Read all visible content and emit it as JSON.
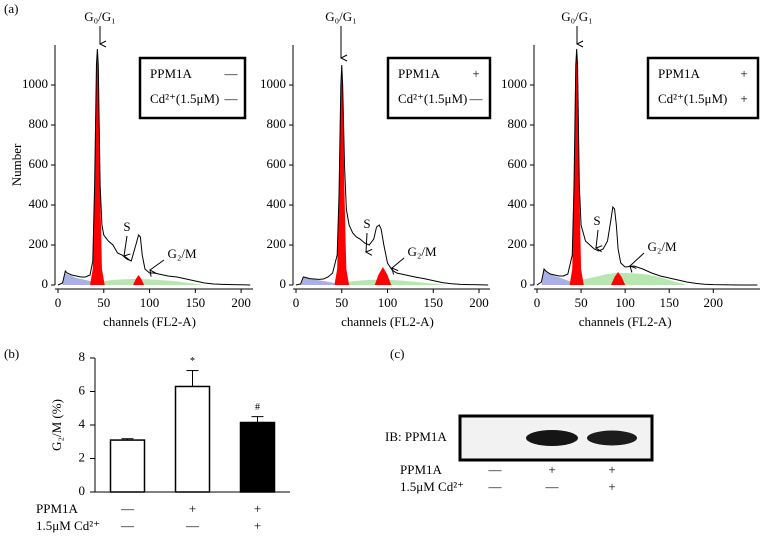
{
  "panel_labels": [
    "(a)",
    "(b)",
    "(c)"
  ],
  "chart_data": [
    {
      "type": "line",
      "x_label": "channels (FL2-A)",
      "y_label": "Number",
      "xlim": [
        0,
        213
      ],
      "xticks": [
        0,
        50,
        100,
        150,
        200
      ],
      "ylim": [
        0,
        1200
      ],
      "yticks": [
        0,
        200,
        400,
        600,
        800,
        1000
      ],
      "annotations": [
        "G₀/G₁",
        "S",
        "G₂/M"
      ],
      "conditions": [
        {
          "label": "PPM1A",
          "value": "—"
        },
        {
          "label": "Cd²⁺(1.5μM)",
          "value": "—"
        }
      ],
      "series": [
        {
          "color": "#aab0e6",
          "fill": true,
          "x": [
            5,
            8,
            10,
            15,
            20,
            25,
            30,
            35,
            40
          ],
          "values": [
            0,
            60,
            55,
            45,
            35,
            30,
            25,
            20,
            15
          ]
        },
        {
          "color": "#b8e6b0",
          "fill": true,
          "x": [
            50,
            60,
            70,
            80,
            90,
            100,
            110,
            120,
            130,
            140,
            150,
            160
          ],
          "values": [
            20,
            25,
            28,
            30,
            30,
            28,
            25,
            22,
            18,
            12,
            6,
            0
          ]
        },
        {
          "color": "#ff0000",
          "fill": true,
          "x": [
            35,
            38,
            40,
            42,
            43,
            44,
            46,
            48,
            51
          ],
          "values": [
            0,
            80,
            500,
            1100,
            1180,
            1100,
            500,
            80,
            0
          ]
        },
        {
          "color": "#ff0000",
          "fill": true,
          "x": [
            82,
            85,
            88,
            91,
            94
          ],
          "values": [
            0,
            30,
            50,
            30,
            0
          ]
        },
        {
          "color": "#000000",
          "fill": false,
          "x": [
            0,
            5,
            8,
            10,
            15,
            20,
            25,
            30,
            35,
            38,
            40,
            42,
            43,
            44,
            46,
            48,
            50,
            55,
            60,
            65,
            70,
            75,
            80,
            85,
            88,
            90,
            92,
            95,
            100,
            105,
            110,
            120,
            130,
            140,
            150,
            160,
            170,
            180,
            190,
            200,
            210
          ],
          "values": [
            0,
            10,
            70,
            60,
            50,
            45,
            40,
            40,
            50,
            120,
            500,
            1100,
            1180,
            1100,
            500,
            300,
            250,
            220,
            200,
            160,
            150,
            130,
            120,
            200,
            250,
            240,
            150,
            80,
            60,
            60,
            55,
            45,
            40,
            30,
            20,
            10,
            5,
            3,
            2,
            1,
            0
          ]
        }
      ]
    },
    {
      "type": "line",
      "x_label": "channels (FL2-A)",
      "xlim": [
        0,
        212
      ],
      "xticks": [
        0,
        50,
        100,
        150,
        200
      ],
      "ylim": [
        0,
        1200
      ],
      "yticks": [
        0,
        200,
        400,
        600,
        800,
        1000
      ],
      "annotations": [
        "G₀/G₁",
        "S",
        "G₂/M"
      ],
      "conditions": [
        {
          "label": "PPM1A",
          "value": "+"
        },
        {
          "label": "Cd²⁺(1.5μM)",
          "value": "—"
        }
      ],
      "series": [
        {
          "color": "#aab0e6",
          "fill": true,
          "x": [
            5,
            8,
            10,
            15,
            20,
            25,
            30,
            35,
            42
          ],
          "values": [
            0,
            40,
            38,
            32,
            28,
            24,
            20,
            16,
            10
          ]
        },
        {
          "color": "#b8e6b0",
          "fill": true,
          "x": [
            55,
            65,
            75,
            85,
            95,
            105,
            115,
            125,
            135,
            145,
            155,
            165
          ],
          "values": [
            15,
            20,
            24,
            26,
            26,
            25,
            22,
            18,
            14,
            9,
            5,
            0
          ]
        },
        {
          "color": "#ff0000",
          "fill": true,
          "x": [
            42,
            45,
            47,
            49,
            50,
            51,
            53,
            55,
            58
          ],
          "values": [
            0,
            80,
            450,
            1000,
            1100,
            1000,
            450,
            80,
            0
          ]
        },
        {
          "color": "#ff0000",
          "fill": true,
          "x": [
            86,
            90,
            95,
            100,
            104
          ],
          "values": [
            0,
            50,
            90,
            50,
            0
          ]
        },
        {
          "color": "#000000",
          "fill": false,
          "x": [
            0,
            5,
            8,
            10,
            15,
            20,
            25,
            30,
            35,
            40,
            45,
            47,
            49,
            50,
            51,
            53,
            55,
            58,
            62,
            66,
            70,
            75,
            80,
            85,
            88,
            91,
            93,
            96,
            100,
            105,
            110,
            120,
            130,
            140,
            150,
            160,
            170,
            180,
            190,
            200,
            210
          ],
          "values": [
            0,
            5,
            40,
            38,
            32,
            30,
            28,
            30,
            40,
            60,
            150,
            450,
            1000,
            1100,
            1000,
            600,
            380,
            300,
            260,
            240,
            230,
            210,
            200,
            230,
            290,
            300,
            280,
            200,
            110,
            75,
            60,
            50,
            40,
            32,
            22,
            12,
            6,
            3,
            2,
            1,
            0
          ]
        }
      ]
    },
    {
      "type": "line",
      "x_label": "channels (FL2-A)",
      "xlim": [
        0,
        253
      ],
      "xticks": [
        0,
        50,
        100,
        150,
        200
      ],
      "ylim": [
        0,
        1200
      ],
      "yticks": [
        0,
        200,
        400,
        600,
        800,
        1000
      ],
      "annotations": [
        "G₀/G₁",
        "S",
        "G₂/M"
      ],
      "conditions": [
        {
          "label": "PPM1A",
          "value": "+"
        },
        {
          "label": "Cd²⁺(1.5μM)",
          "value": "+"
        }
      ],
      "series": [
        {
          "color": "#aab0e6",
          "fill": true,
          "x": [
            5,
            8,
            10,
            15,
            20,
            25,
            30,
            35,
            40
          ],
          "values": [
            0,
            80,
            70,
            55,
            45,
            38,
            30,
            22,
            15
          ]
        },
        {
          "color": "#b8e6b0",
          "fill": true,
          "x": [
            50,
            60,
            70,
            80,
            90,
            100,
            110,
            120,
            130,
            140,
            150,
            160,
            170
          ],
          "values": [
            25,
            35,
            45,
            55,
            60,
            60,
            58,
            55,
            48,
            38,
            25,
            12,
            0
          ]
        },
        {
          "color": "#ff0000",
          "fill": true,
          "x": [
            37,
            40,
            42,
            44,
            45,
            46,
            48,
            50,
            53
          ],
          "values": [
            0,
            80,
            500,
            1100,
            1180,
            1100,
            500,
            80,
            0
          ]
        },
        {
          "color": "#ff0000",
          "fill": true,
          "x": [
            84,
            88,
            92,
            96,
            100
          ],
          "values": [
            0,
            40,
            65,
            40,
            0
          ]
        },
        {
          "color": "#000000",
          "fill": false,
          "x": [
            0,
            5,
            8,
            10,
            15,
            20,
            25,
            30,
            35,
            40,
            42,
            44,
            45,
            46,
            48,
            50,
            55,
            60,
            65,
            70,
            75,
            80,
            84,
            86,
            88,
            90,
            92,
            95,
            100,
            110,
            120,
            130,
            140,
            150,
            160,
            170,
            180,
            190,
            200,
            210,
            230,
            250
          ],
          "values": [
            0,
            15,
            80,
            70,
            55,
            50,
            45,
            45,
            55,
            150,
            500,
            1100,
            1180,
            1100,
            500,
            300,
            220,
            200,
            180,
            170,
            180,
            220,
            330,
            390,
            380,
            300,
            180,
            110,
            90,
            95,
            80,
            60,
            45,
            35,
            25,
            15,
            8,
            4,
            2,
            1,
            0,
            0
          ]
        }
      ]
    },
    {
      "type": "bar",
      "y_label": "G₂/M (%)",
      "ylim": [
        0,
        8
      ],
      "yticks": [
        0,
        2,
        4,
        6,
        8
      ],
      "values": [
        3.1,
        6.3,
        4.15
      ],
      "errors": [
        0.08,
        0.95,
        0.35
      ],
      "colors": [
        "#ffffff",
        "#ffffff",
        "#000000"
      ],
      "markers": [
        null,
        "*",
        "#"
      ],
      "conditions": [
        {
          "label": "PPM1A",
          "values": [
            "—",
            "+",
            "+"
          ]
        },
        {
          "label": "1.5μM Cd²⁺",
          "values": [
            "—",
            "—",
            "+"
          ]
        }
      ]
    }
  ],
  "blot": {
    "label": "IB: PPM1A",
    "conditions": [
      {
        "label": "PPM1A",
        "values": [
          "—",
          "+",
          "+"
        ]
      },
      {
        "label": "1.5μM Cd²⁺",
        "values": [
          "—",
          "—",
          "+"
        ]
      }
    ]
  }
}
